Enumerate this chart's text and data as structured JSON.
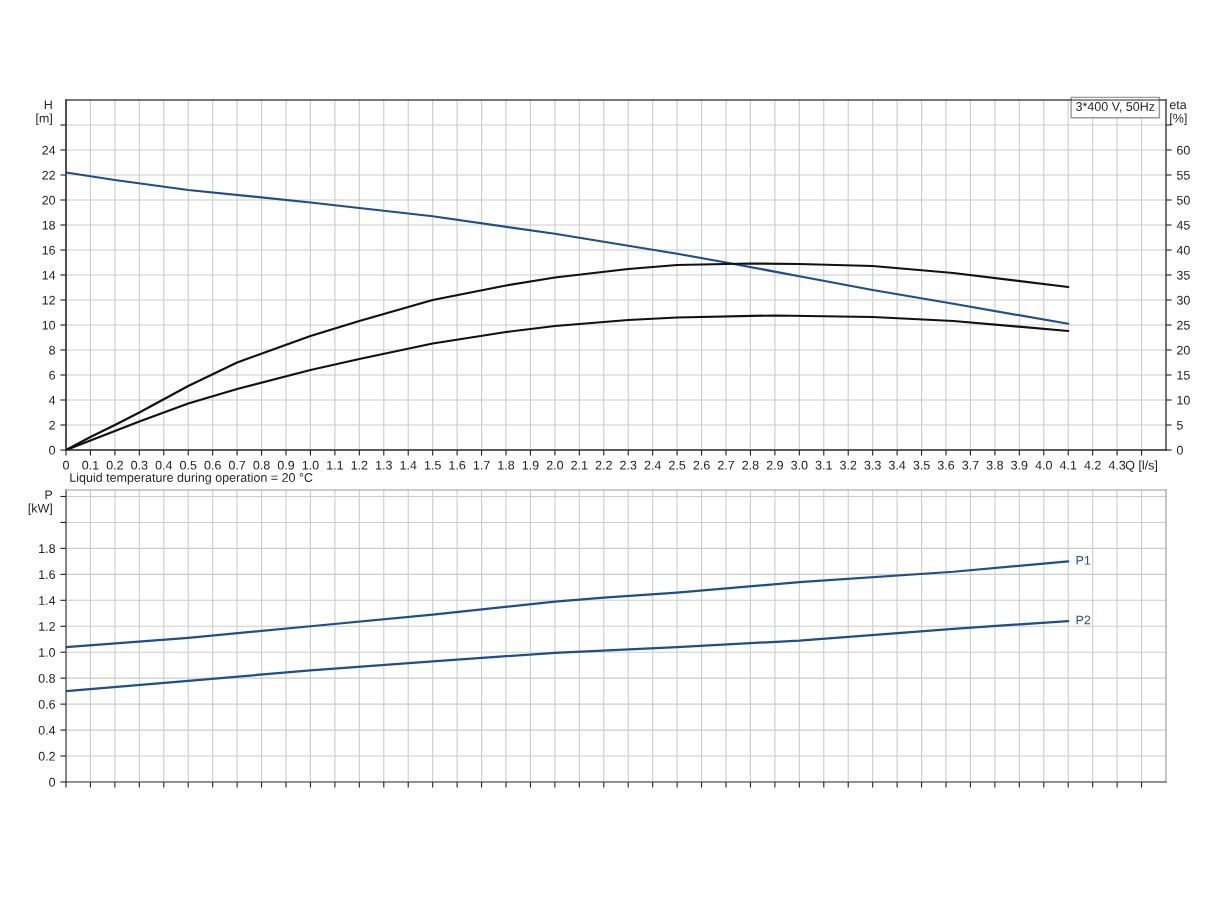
{
  "chart_data": [
    {
      "type": "line",
      "ylabel": "H\n[m]",
      "y2label": "eta\n[%]",
      "xlim": [
        0,
        4.5
      ],
      "xticks": [
        0,
        0.1,
        0.2,
        0.3,
        0.4,
        0.5,
        0.6,
        0.7,
        0.8,
        0.9,
        {
          "value": 1.0,
          "label": "1.0"
        },
        1.1,
        1.2,
        1.3,
        1.4,
        1.5,
        1.6,
        1.7,
        1.8,
        1.9,
        {
          "value": 2.0,
          "label": "2.0"
        },
        2.1,
        2.2,
        2.3,
        2.4,
        2.5,
        2.6,
        2.7,
        2.8,
        2.9,
        {
          "value": 3.0,
          "label": "3.0"
        },
        3.1,
        3.2,
        3.3,
        3.4,
        3.5,
        3.6,
        3.7,
        3.8,
        3.9,
        {
          "value": 4.0,
          "label": "4.0"
        },
        4.1,
        4.2,
        4.3,
        {
          "value": 4.4,
          "label": "Q [l/s]"
        }
      ],
      "ylim": [
        0,
        28
      ],
      "yticks": [
        0,
        2,
        4,
        6,
        8,
        10,
        12,
        14,
        16,
        18,
        20,
        22,
        24,
        {
          "value": 26,
          "label": null
        }
      ],
      "y2lim": [
        0,
        70
      ],
      "y2ticks": [
        0,
        5,
        10,
        15,
        20,
        25,
        30,
        35,
        40,
        45,
        50,
        55,
        60,
        {
          "value": 65,
          "label": null
        }
      ],
      "grid": true,
      "marker": "none",
      "line_style": "solid",
      "annotations": [
        "3*400 V, 50Hz",
        "Liquid temperature during operation = 20 °C"
      ],
      "series": [
        {
          "color": "#1f4e8c",
          "x": [
            0,
            0.2,
            0.5,
            1.0,
            1.5,
            2.0,
            2.5,
            2.7,
            3.0,
            3.3,
            3.63,
            4.1
          ],
          "values": [
            22.2,
            21.6,
            20.8,
            19.8,
            18.7,
            17.3,
            15.7,
            15.0,
            13.9,
            12.8,
            11.7,
            10.1
          ]
        },
        {
          "axis": "y2",
          "color": "#111111",
          "x": [
            0,
            0.1,
            0.2,
            0.3,
            0.5,
            0.7,
            1.0,
            1.2,
            1.5,
            1.8,
            2.0,
            2.3,
            2.5,
            2.8,
            3.0,
            3.3,
            3.63,
            4.1
          ],
          "values": [
            0,
            2.6,
            5,
            7.5,
            12.8,
            17.5,
            22.8,
            25.8,
            30,
            32.9,
            34.5,
            36.2,
            37,
            37.3,
            37.2,
            36.8,
            35.4,
            32.6
          ]
        },
        {
          "axis": "y2",
          "color": "#111111",
          "x": [
            0,
            0.1,
            0.2,
            0.3,
            0.5,
            0.7,
            1.0,
            1.2,
            1.5,
            1.8,
            2.0,
            2.3,
            2.5,
            2.9,
            3.3,
            3.63,
            4.1
          ],
          "values": [
            0,
            1.9,
            3.8,
            5.7,
            9.3,
            12.2,
            16,
            18.2,
            21.3,
            23.6,
            24.8,
            26.0,
            26.5,
            26.9,
            26.6,
            25.8,
            23.8
          ]
        }
      ]
    },
    {
      "type": "line",
      "ylabel": "P\n[kW]",
      "tick_labels": "y",
      "xlim": [
        0,
        4.5
      ],
      "xticks": [
        0,
        0.1,
        0.2,
        0.3,
        0.4,
        0.5,
        0.6,
        0.7,
        0.8,
        0.9,
        1.0,
        1.1,
        1.2,
        1.3,
        1.4,
        1.5,
        1.6,
        1.7,
        1.8,
        1.9,
        2.0,
        2.1,
        2.2,
        2.3,
        2.4,
        2.5,
        2.6,
        2.7,
        2.8,
        2.9,
        3.0,
        3.1,
        3.2,
        3.3,
        3.4,
        3.5,
        3.6,
        3.7,
        3.8,
        3.9,
        4.0,
        4.1,
        4.2,
        4.3,
        4.4
      ],
      "ylim": [
        0,
        2.25
      ],
      "yticks": [
        0,
        0.2,
        0.4,
        0.6,
        0.8,
        {
          "value": 1.0,
          "label": "1.0"
        },
        1.2,
        1.4,
        1.6,
        1.8,
        {
          "value": 2.0,
          "label": null
        },
        {
          "value": 2.2,
          "label": null
        }
      ],
      "grid": true,
      "marker": "none",
      "line_style": "solid",
      "series": [
        {
          "name": "P1",
          "color": "#1f4e8c",
          "x": [
            0,
            0.5,
            1.0,
            1.5,
            2.0,
            2.2,
            2.5,
            3.0,
            3.63,
            4.1
          ],
          "values": [
            1.04,
            1.11,
            1.2,
            1.29,
            1.39,
            1.42,
            1.46,
            1.54,
            1.62,
            1.7
          ]
        },
        {
          "name": "P2",
          "color": "#1f4e8c",
          "x": [
            0,
            0.5,
            1.0,
            1.5,
            2.0,
            2.5,
            3.0,
            3.63,
            4.1
          ],
          "values": [
            0.7,
            0.78,
            0.86,
            0.93,
            0.995,
            1.04,
            1.09,
            1.18,
            1.24
          ]
        }
      ]
    }
  ]
}
